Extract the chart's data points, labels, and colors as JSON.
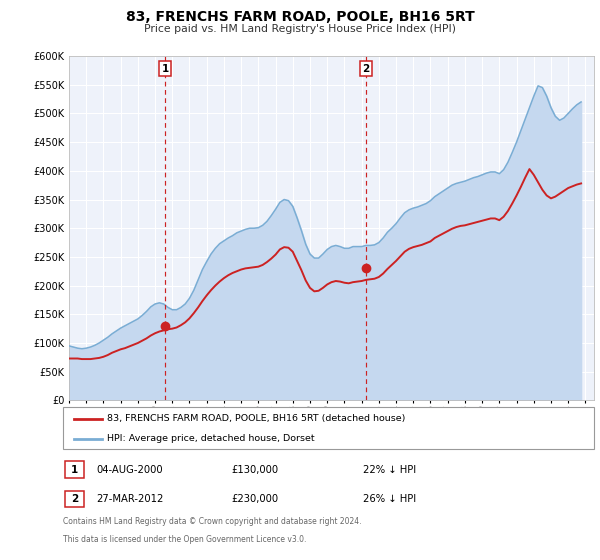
{
  "title": "83, FRENCHS FARM ROAD, POOLE, BH16 5RT",
  "subtitle": "Price paid vs. HM Land Registry's House Price Index (HPI)",
  "ylim": [
    0,
    600000
  ],
  "yticks": [
    0,
    50000,
    100000,
    150000,
    200000,
    250000,
    300000,
    350000,
    400000,
    450000,
    500000,
    550000,
    600000
  ],
  "ytick_labels": [
    "£0",
    "£50K",
    "£100K",
    "£150K",
    "£200K",
    "£250K",
    "£300K",
    "£350K",
    "£400K",
    "£450K",
    "£500K",
    "£550K",
    "£600K"
  ],
  "xlim_start": 1995.0,
  "xlim_end": 2025.5,
  "xtick_years": [
    1995,
    1996,
    1997,
    1998,
    1999,
    2000,
    2001,
    2002,
    2003,
    2004,
    2005,
    2006,
    2007,
    2008,
    2009,
    2010,
    2011,
    2012,
    2013,
    2014,
    2015,
    2016,
    2017,
    2018,
    2019,
    2020,
    2021,
    2022,
    2023,
    2024,
    2025
  ],
  "plot_bg_color": "#eef2fa",
  "grid_color": "#ffffff",
  "hpi_color": "#7aadd4",
  "hpi_fill_color": "#c5d8ef",
  "price_color": "#cc2222",
  "marker_color": "#cc2222",
  "sale1_x": 2000.586,
  "sale1_y": 130000,
  "sale2_x": 2012.236,
  "sale2_y": 230000,
  "vline1_x": 2000.586,
  "vline2_x": 2012.236,
  "legend_label_price": "83, FRENCHS FARM ROAD, POOLE, BH16 5RT (detached house)",
  "legend_label_hpi": "HPI: Average price, detached house, Dorset",
  "table_row1": [
    "1",
    "04-AUG-2000",
    "£130,000",
    "22% ↓ HPI"
  ],
  "table_row2": [
    "2",
    "27-MAR-2012",
    "£230,000",
    "26% ↓ HPI"
  ],
  "footnote1": "Contains HM Land Registry data © Crown copyright and database right 2024.",
  "footnote2": "This data is licensed under the Open Government Licence v3.0.",
  "hpi_data_x": [
    1995.0,
    1995.25,
    1995.5,
    1995.75,
    1996.0,
    1996.25,
    1996.5,
    1996.75,
    1997.0,
    1997.25,
    1997.5,
    1997.75,
    1998.0,
    1998.25,
    1998.5,
    1998.75,
    1999.0,
    1999.25,
    1999.5,
    1999.75,
    2000.0,
    2000.25,
    2000.5,
    2000.75,
    2001.0,
    2001.25,
    2001.5,
    2001.75,
    2002.0,
    2002.25,
    2002.5,
    2002.75,
    2003.0,
    2003.25,
    2003.5,
    2003.75,
    2004.0,
    2004.25,
    2004.5,
    2004.75,
    2005.0,
    2005.25,
    2005.5,
    2005.75,
    2006.0,
    2006.25,
    2006.5,
    2006.75,
    2007.0,
    2007.25,
    2007.5,
    2007.75,
    2008.0,
    2008.25,
    2008.5,
    2008.75,
    2009.0,
    2009.25,
    2009.5,
    2009.75,
    2010.0,
    2010.25,
    2010.5,
    2010.75,
    2011.0,
    2011.25,
    2011.5,
    2011.75,
    2012.0,
    2012.25,
    2012.5,
    2012.75,
    2013.0,
    2013.25,
    2013.5,
    2013.75,
    2014.0,
    2014.25,
    2014.5,
    2014.75,
    2015.0,
    2015.25,
    2015.5,
    2015.75,
    2016.0,
    2016.25,
    2016.5,
    2016.75,
    2017.0,
    2017.25,
    2017.5,
    2017.75,
    2018.0,
    2018.25,
    2018.5,
    2018.75,
    2019.0,
    2019.25,
    2019.5,
    2019.75,
    2020.0,
    2020.25,
    2020.5,
    2020.75,
    2021.0,
    2021.25,
    2021.5,
    2021.75,
    2022.0,
    2022.25,
    2022.5,
    2022.75,
    2023.0,
    2023.25,
    2023.5,
    2023.75,
    2024.0,
    2024.25,
    2024.5,
    2024.75
  ],
  "hpi_data_y": [
    95000,
    93000,
    91000,
    90000,
    91000,
    93000,
    96000,
    100000,
    105000,
    110000,
    116000,
    121000,
    126000,
    130000,
    134000,
    138000,
    142000,
    148000,
    155000,
    163000,
    168000,
    170000,
    168000,
    162000,
    158000,
    158000,
    162000,
    168000,
    178000,
    192000,
    210000,
    228000,
    242000,
    255000,
    265000,
    273000,
    278000,
    283000,
    287000,
    292000,
    295000,
    298000,
    300000,
    300000,
    301000,
    305000,
    312000,
    322000,
    333000,
    345000,
    350000,
    348000,
    338000,
    318000,
    296000,
    272000,
    255000,
    248000,
    248000,
    255000,
    263000,
    268000,
    270000,
    268000,
    265000,
    265000,
    268000,
    268000,
    268000,
    270000,
    270000,
    271000,
    275000,
    283000,
    293000,
    300000,
    308000,
    318000,
    327000,
    332000,
    335000,
    337000,
    340000,
    343000,
    348000,
    355000,
    360000,
    365000,
    370000,
    375000,
    378000,
    380000,
    382000,
    385000,
    388000,
    390000,
    393000,
    396000,
    398000,
    398000,
    395000,
    402000,
    415000,
    432000,
    450000,
    470000,
    490000,
    510000,
    530000,
    548000,
    545000,
    530000,
    510000,
    495000,
    488000,
    492000,
    500000,
    508000,
    515000,
    520000
  ],
  "price_data_x": [
    1995.0,
    1995.25,
    1995.5,
    1995.75,
    1996.0,
    1996.25,
    1996.5,
    1996.75,
    1997.0,
    1997.25,
    1997.5,
    1997.75,
    1998.0,
    1998.25,
    1998.5,
    1998.75,
    1999.0,
    1999.25,
    1999.5,
    1999.75,
    2000.0,
    2000.25,
    2000.5,
    2000.75,
    2001.0,
    2001.25,
    2001.5,
    2001.75,
    2002.0,
    2002.25,
    2002.5,
    2002.75,
    2003.0,
    2003.25,
    2003.5,
    2003.75,
    2004.0,
    2004.25,
    2004.5,
    2004.75,
    2005.0,
    2005.25,
    2005.5,
    2005.75,
    2006.0,
    2006.25,
    2006.5,
    2006.75,
    2007.0,
    2007.25,
    2007.5,
    2007.75,
    2008.0,
    2008.25,
    2008.5,
    2008.75,
    2009.0,
    2009.25,
    2009.5,
    2009.75,
    2010.0,
    2010.25,
    2010.5,
    2010.75,
    2011.0,
    2011.25,
    2011.5,
    2011.75,
    2012.0,
    2012.25,
    2012.5,
    2012.75,
    2013.0,
    2013.25,
    2013.5,
    2013.75,
    2014.0,
    2014.25,
    2014.5,
    2014.75,
    2015.0,
    2015.25,
    2015.5,
    2015.75,
    2016.0,
    2016.25,
    2016.5,
    2016.75,
    2017.0,
    2017.25,
    2017.5,
    2017.75,
    2018.0,
    2018.25,
    2018.5,
    2018.75,
    2019.0,
    2019.25,
    2019.5,
    2019.75,
    2020.0,
    2020.25,
    2020.5,
    2020.75,
    2021.0,
    2021.25,
    2021.5,
    2021.75,
    2022.0,
    2022.25,
    2022.5,
    2022.75,
    2023.0,
    2023.25,
    2023.5,
    2023.75,
    2024.0,
    2024.25,
    2024.5,
    2024.75
  ],
  "price_data_y": [
    73000,
    73000,
    73000,
    72000,
    72000,
    72000,
    73000,
    74000,
    76000,
    79000,
    83000,
    86000,
    89000,
    91000,
    94000,
    97000,
    100000,
    104000,
    108000,
    113000,
    117000,
    120000,
    122000,
    124000,
    125000,
    127000,
    131000,
    136000,
    143000,
    152000,
    162000,
    173000,
    183000,
    192000,
    200000,
    207000,
    213000,
    218000,
    222000,
    225000,
    228000,
    230000,
    231000,
    232000,
    233000,
    236000,
    241000,
    247000,
    254000,
    263000,
    267000,
    266000,
    259000,
    243000,
    227000,
    209000,
    196000,
    190000,
    191000,
    196000,
    202000,
    206000,
    208000,
    207000,
    205000,
    204000,
    206000,
    207000,
    208000,
    210000,
    211000,
    212000,
    215000,
    221000,
    229000,
    236000,
    243000,
    251000,
    259000,
    264000,
    267000,
    269000,
    271000,
    274000,
    277000,
    283000,
    287000,
    291000,
    295000,
    299000,
    302000,
    304000,
    305000,
    307000,
    309000,
    311000,
    313000,
    315000,
    317000,
    317000,
    314000,
    320000,
    330000,
    343000,
    357000,
    372000,
    388000,
    403000,
    393000,
    380000,
    367000,
    357000,
    352000,
    355000,
    360000,
    365000,
    370000,
    373000,
    376000,
    378000
  ]
}
